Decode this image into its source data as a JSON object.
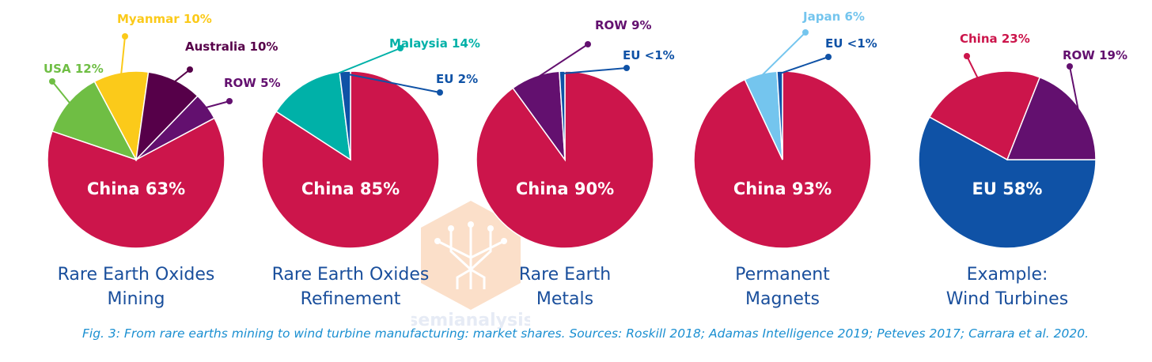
{
  "caption": "Fig. 3: From rare earths mining to wind turbine manufacturing: market shares. Sources: Roskill 2018; Adamas Intelligence 2019; Peteves 2017; Carrara et al. 2020.",
  "watermark": {
    "text": "semianalysis"
  },
  "colors": {
    "china": "#cc154b",
    "usa": "#6fbe44",
    "myanmar": "#fbca1a",
    "australia": "#560049",
    "row": "#63106f",
    "malaysia": "#00b1a8",
    "eu": "#0f52a6",
    "japan": "#74c5ee",
    "title": "#1a4f9c",
    "caption": "#1a8fd1"
  },
  "chart_data": [
    {
      "type": "pie",
      "title_lines": [
        "Rare Earth Oxides",
        "Mining"
      ],
      "slices": [
        {
          "label": "China 63%",
          "value": 63,
          "color": "#cc154b"
        },
        {
          "label": "USA 12%",
          "value": 12,
          "color": "#6fbe44"
        },
        {
          "label": "Myanmar 10%",
          "value": 10,
          "color": "#fbca1a"
        },
        {
          "label": "Australia 10%",
          "value": 10,
          "color": "#560049"
        },
        {
          "label": "ROW 5%",
          "value": 5,
          "color": "#63106f"
        }
      ]
    },
    {
      "type": "pie",
      "title_lines": [
        "Rare Earth Oxides",
        "Refinement"
      ],
      "slices": [
        {
          "label": "China 85%",
          "value": 85,
          "color": "#cc154b"
        },
        {
          "label": "Malaysia 14%",
          "value": 14,
          "color": "#00b1a8"
        },
        {
          "label": "EU 2%",
          "value": 2,
          "color": "#0f52a6"
        }
      ]
    },
    {
      "type": "pie",
      "title_lines": [
        "Rare Earth",
        "Metals"
      ],
      "slices": [
        {
          "label": "China 90%",
          "value": 90,
          "color": "#cc154b"
        },
        {
          "label": "ROW 9%",
          "value": 9,
          "color": "#63106f"
        },
        {
          "label": "EU <1%",
          "value": 1,
          "color": "#0f52a6"
        }
      ]
    },
    {
      "type": "pie",
      "title_lines": [
        "Permanent",
        "Magnets"
      ],
      "slices": [
        {
          "label": "China 93%",
          "value": 93,
          "color": "#cc154b"
        },
        {
          "label": "Japan 6%",
          "value": 6,
          "color": "#74c5ee"
        },
        {
          "label": "EU <1%",
          "value": 1,
          "color": "#0f52a6"
        }
      ]
    },
    {
      "type": "pie",
      "title_lines": [
        "Example:",
        "Wind Turbines"
      ],
      "slices": [
        {
          "label": "EU 58%",
          "value": 58,
          "color": "#0f52a6"
        },
        {
          "label": "China 23%",
          "value": 23,
          "color": "#cc154b"
        },
        {
          "label": "ROW 19%",
          "value": 19,
          "color": "#63106f"
        }
      ]
    }
  ]
}
